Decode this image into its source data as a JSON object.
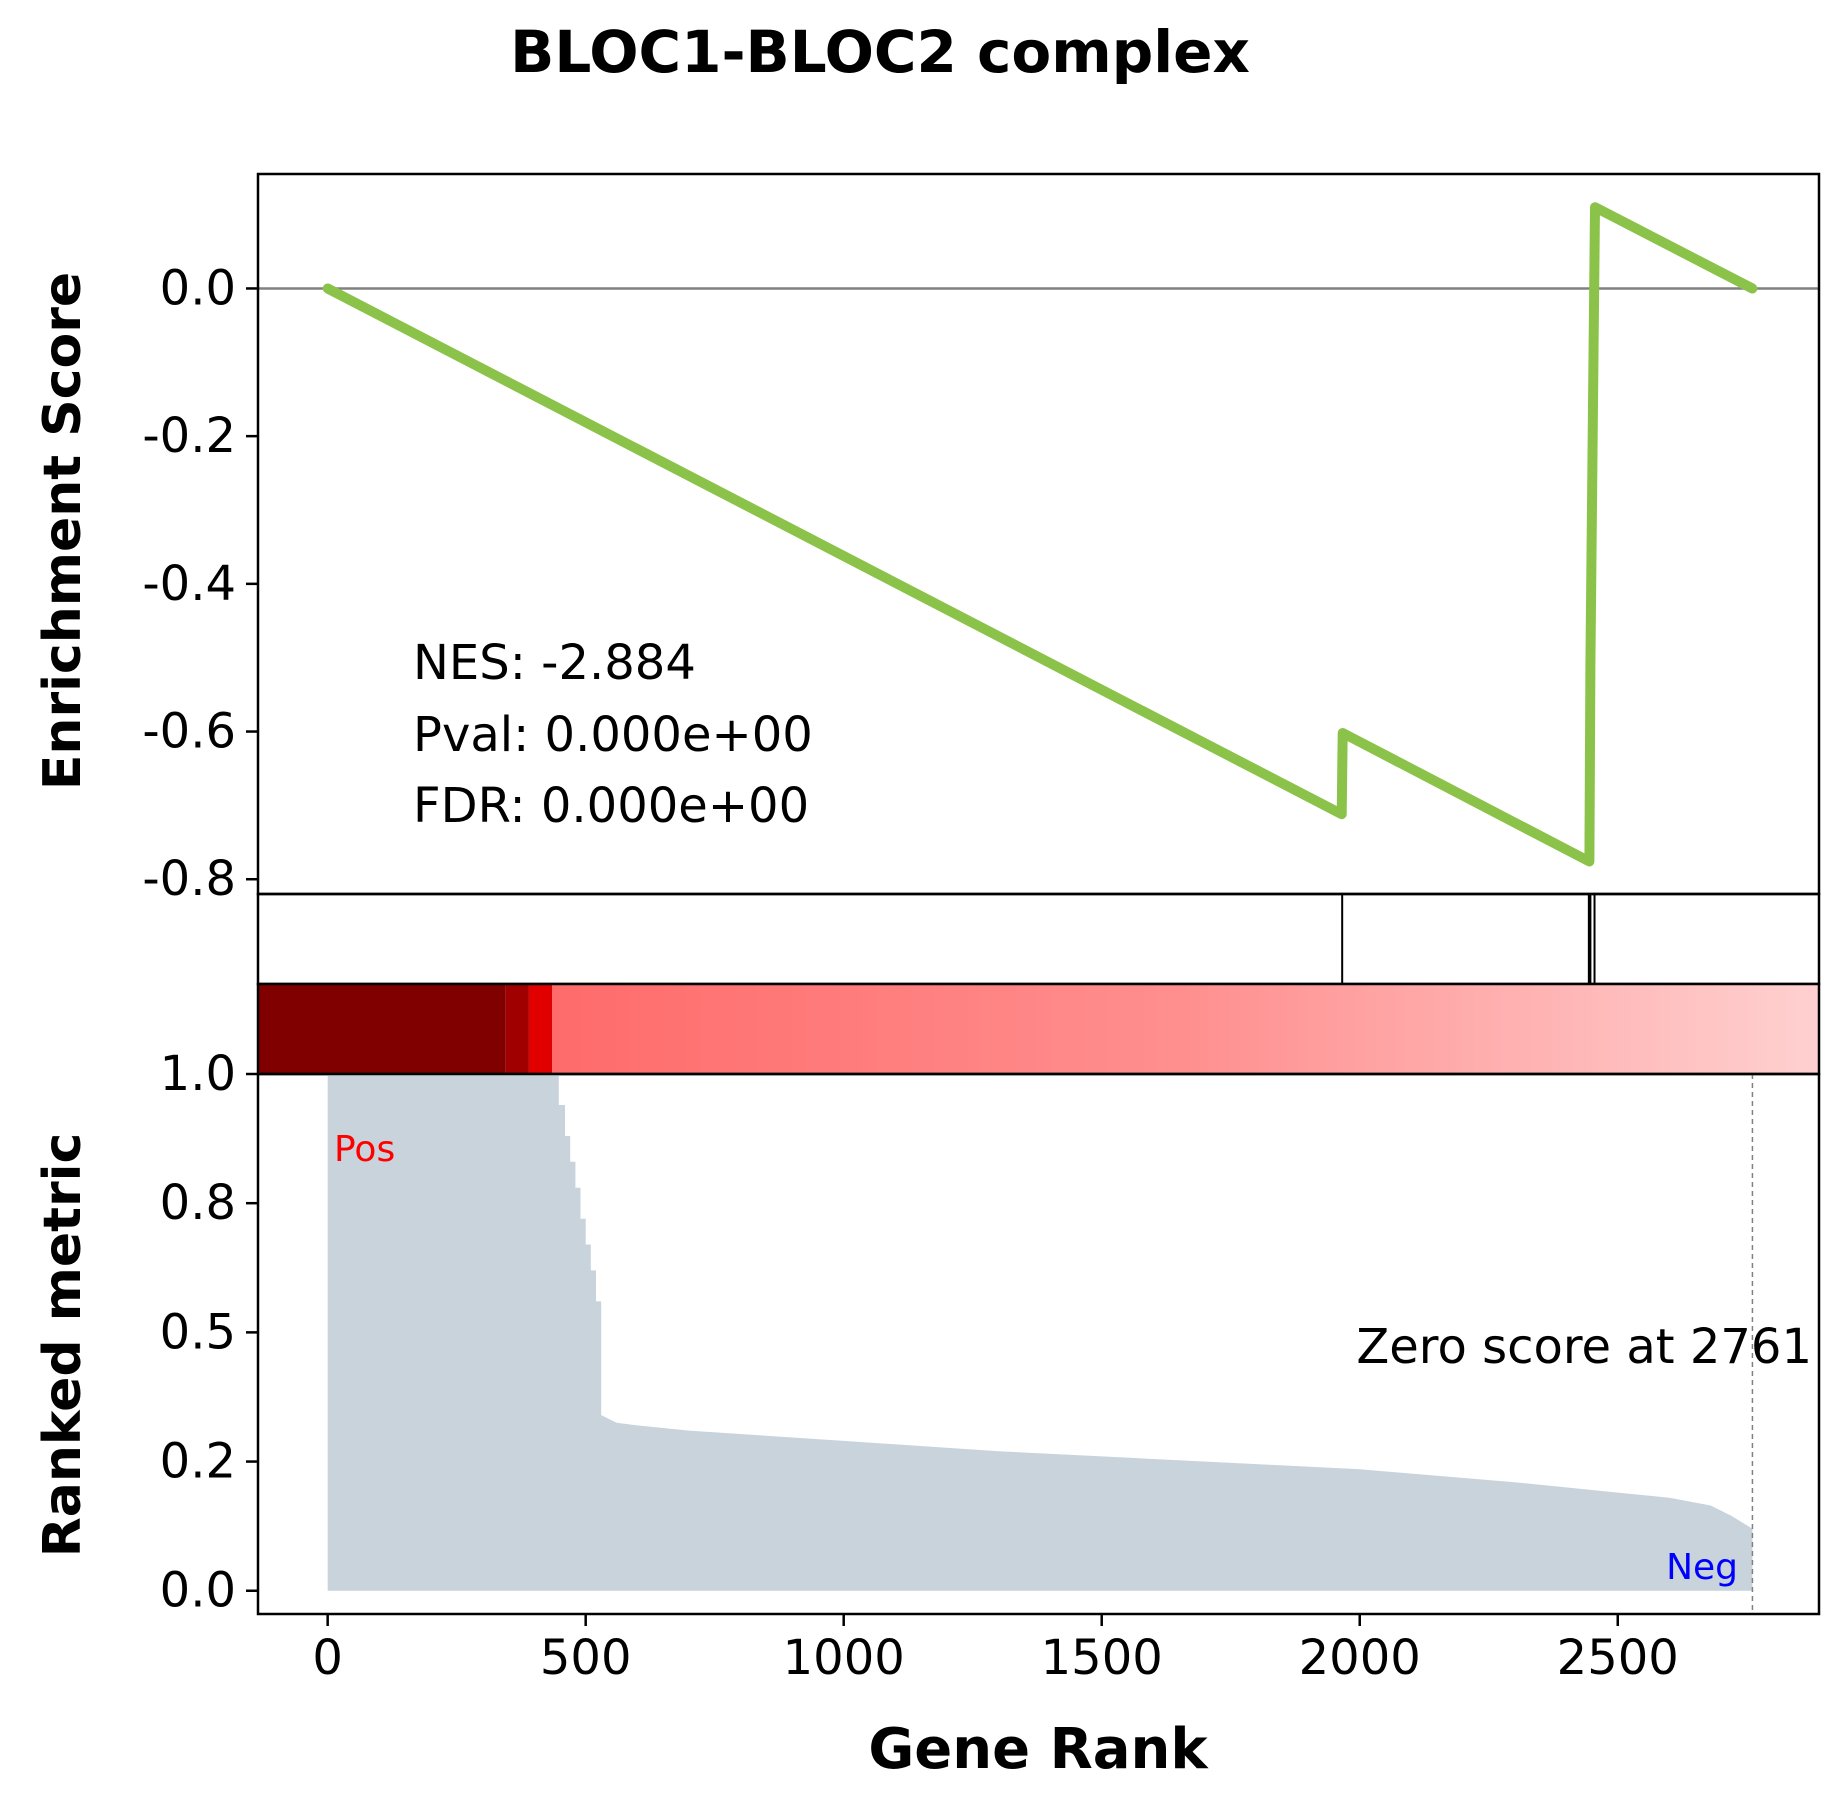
{
  "chart_data": {
    "type": "line",
    "title": "BLOC1-BLOC2 complex",
    "xlabel": "Gene Rank",
    "xlim": [
      -135,
      2890
    ],
    "x_ticks": [
      0,
      500,
      1000,
      1500,
      2000,
      2500
    ],
    "es_panel": {
      "ylabel": "Enrichment Score",
      "ylim": [
        -0.82,
        0.155
      ],
      "y_ticks": [
        0.0,
        -0.2,
        -0.4,
        -0.6,
        -0.8
      ],
      "y_tick_labels": [
        "0.0",
        "-0.2",
        "-0.4",
        "-0.6",
        "-0.8"
      ],
      "line_color": "#8bc34a",
      "zero_line_color": "#808080",
      "running_es": {
        "x": [
          0,
          1965,
          1967,
          2445,
          2447,
          2452,
          2456,
          2761
        ],
        "y": [
          0.0,
          -0.712,
          -0.602,
          -0.776,
          -0.51,
          -0.157,
          0.11,
          0.0
        ]
      },
      "stats": {
        "nes": "NES: -2.884",
        "pval": "Pval: 0.000e+00",
        "fdr": "FDR: 0.000e+00"
      }
    },
    "hits_panel": {
      "gene_hit_ranks": [
        1966,
        2444,
        2447,
        2455
      ]
    },
    "heatmap_panel": {
      "colormap": "seismic-reds",
      "segments": [
        {
          "from": 0,
          "to": 345,
          "color": "#800000"
        },
        {
          "from": 345,
          "to": 390,
          "color": "#a00000"
        },
        {
          "from": 390,
          "to": 435,
          "color": "#e00000"
        },
        {
          "from": 435,
          "to": 1000,
          "color": "#ff6b6b"
        },
        {
          "from": 1000,
          "to": 2000,
          "color": "#ff8f8f"
        },
        {
          "from": 2000,
          "to": 2761,
          "color": "#ffc8c8"
        }
      ]
    },
    "ranked_panel": {
      "ylabel": "Ranked metric",
      "ylim": [
        -0.045,
        1.0
      ],
      "y_ticks": [
        0.0,
        0.25,
        0.5,
        0.75,
        1.0
      ],
      "y_tick_labels": [
        "0.0",
        "0.2",
        "0.5",
        "0.8",
        "1.0"
      ],
      "fill_color": "#c8d3dc",
      "metric": {
        "x": [
          0,
          440,
          448,
          460,
          470,
          480,
          490,
          500,
          510,
          520,
          530,
          560,
          600,
          700,
          1000,
          1300,
          1500,
          1800,
          2000,
          2300,
          2500,
          2600,
          2680,
          2720,
          2761
        ],
        "y": [
          1.0,
          1.0,
          0.94,
          0.88,
          0.83,
          0.78,
          0.72,
          0.67,
          0.62,
          0.56,
          0.34,
          0.325,
          0.32,
          0.31,
          0.29,
          0.27,
          0.26,
          0.245,
          0.235,
          0.21,
          0.19,
          0.18,
          0.165,
          0.145,
          0.12
        ]
      },
      "pos_label": "Pos",
      "pos_color": "#ff0000",
      "neg_label": "Neg",
      "neg_color": "#0000ff",
      "zero_score_rank": 2761,
      "zero_score_text": "Zero score at 2761"
    }
  }
}
